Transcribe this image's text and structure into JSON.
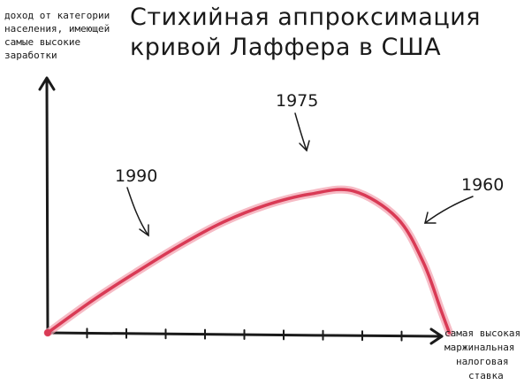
{
  "title": {
    "line1": "Стихийная аппроксимация",
    "line2": "кривой Лаффера в США"
  },
  "ylabel": {
    "lines": [
      "доход от категории",
      "населения, имеющей",
      "самые высокие",
      "заработки"
    ]
  },
  "xlabel": {
    "lines": [
      "самая высокая",
      "маржинальная",
      "налоговая",
      "ставка"
    ]
  },
  "colors": {
    "curve": "#d93a55",
    "curve_glow": "#f3a4b2",
    "ink": "#1a1a1a"
  },
  "chart_data": {
    "type": "line",
    "title": "Стихийная аппроксимация кривой Лаффера в США",
    "xlabel": "самая высокая маржинальная налоговая ставка",
    "ylabel": "доход от категории населения, имеющей самые высокие заработки",
    "x_ticks_count": 10,
    "axis_ticks_labeled": false,
    "grid": false,
    "series": [
      {
        "values": [
          [
            0.0,
            0.0
          ],
          [
            0.1,
            0.2
          ],
          [
            0.2,
            0.38
          ],
          [
            0.3,
            0.55
          ],
          [
            0.4,
            0.7
          ],
          [
            0.5,
            0.81
          ],
          [
            0.6,
            0.88
          ],
          [
            0.7,
            0.9
          ],
          [
            0.8,
            0.73
          ],
          [
            0.86,
            0.45
          ],
          [
            0.9,
            0.15
          ],
          [
            0.92,
            0.0
          ]
        ]
      }
    ],
    "annotations": [
      {
        "text": "1990",
        "x": 0.25,
        "y": 0.48
      },
      {
        "text": "1975",
        "x": 0.62,
        "y": 0.88
      },
      {
        "text": "1960",
        "x": 0.84,
        "y": 0.56
      }
    ]
  }
}
